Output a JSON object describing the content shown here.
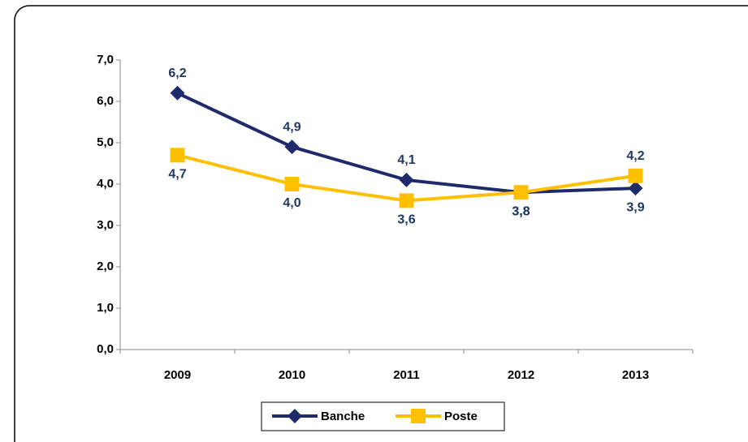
{
  "chart_data": {
    "type": "line",
    "categories": [
      "2009",
      "2010",
      "2011",
      "2012",
      "2013"
    ],
    "series": [
      {
        "name": "Banche",
        "color": "#1f2a6b",
        "values": [
          6.2,
          4.9,
          4.1,
          3.8,
          3.9
        ],
        "value_labels": [
          "6,2",
          "4,9",
          "4,1",
          "3,8",
          "3,9"
        ]
      },
      {
        "name": "Poste",
        "color": "#ffc000",
        "values": [
          4.7,
          4.0,
          3.6,
          3.8,
          4.2
        ],
        "value_labels": [
          "4,7",
          "4,0",
          "3,6",
          "3,8",
          "4,2"
        ]
      }
    ],
    "ylim": [
      0,
      7
    ],
    "yticks": [
      {
        "value": 0,
        "label": "0,0"
      },
      {
        "value": 1,
        "label": "1,0"
      },
      {
        "value": 2,
        "label": "2,0"
      },
      {
        "value": 3,
        "label": "3,0"
      },
      {
        "value": 4,
        "label": "4,0"
      },
      {
        "value": 5,
        "label": "5,0"
      },
      {
        "value": 6,
        "label": "6,0"
      },
      {
        "value": 7,
        "label": "7,0"
      }
    ],
    "legend": "bottom"
  }
}
